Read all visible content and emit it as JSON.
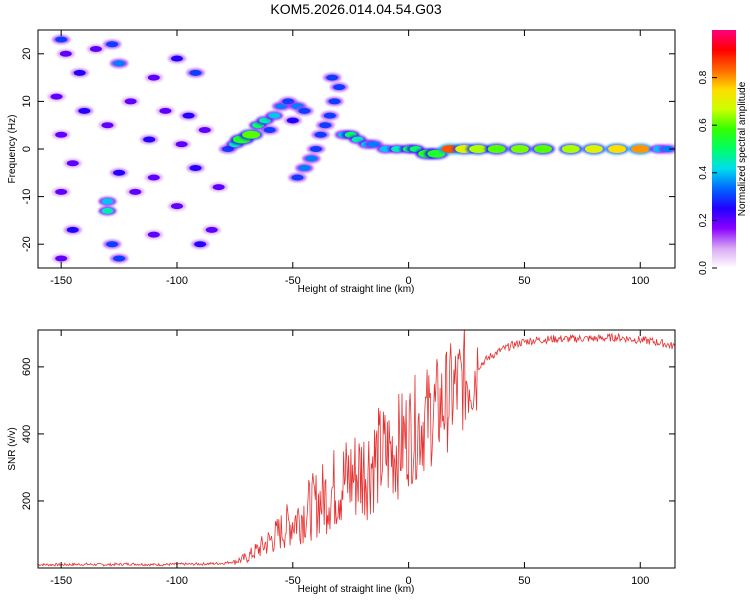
{
  "title": "KOM5.2026.014.04.54.G03",
  "colors": {
    "snr_line": "#e83030",
    "cb_stops": [
      "#ffffff",
      "#d9a9f4",
      "#8800ff",
      "#2200ff",
      "#0066ff",
      "#00ddee",
      "#00ff66",
      "#33ff00",
      "#ccff00",
      "#ffdd00",
      "#ff6600",
      "#ff0000",
      "#ff0080"
    ]
  },
  "chart_data": [
    {
      "type": "heatmap",
      "xlabel": "Height of straight line (km)",
      "ylabel": "Frequency (Hz)",
      "xlim": [
        -160,
        115
      ],
      "ylim": [
        -25,
        25
      ],
      "xticks": [
        -150,
        -100,
        -50,
        0,
        50,
        100
      ],
      "yticks": [
        -20,
        -10,
        0,
        10,
        20
      ],
      "colorbar": {
        "label": "Normalized spectral amplitude",
        "range": [
          0,
          1
        ],
        "ticks": [
          "0.0",
          "0.2",
          "0.4",
          "0.6",
          "0.8"
        ]
      },
      "blobs": [
        {
          "x": -150,
          "y": 23,
          "a": 0.3
        },
        {
          "x": -148,
          "y": 20,
          "a": 0.2
        },
        {
          "x": -142,
          "y": 16,
          "a": 0.25
        },
        {
          "x": -135,
          "y": 21,
          "a": 0.2
        },
        {
          "x": -125,
          "y": 18,
          "a": 0.35
        },
        {
          "x": -128,
          "y": 22,
          "a": 0.3
        },
        {
          "x": -110,
          "y": 15,
          "a": 0.2
        },
        {
          "x": -100,
          "y": 19,
          "a": 0.25
        },
        {
          "x": -92,
          "y": 16,
          "a": 0.3
        },
        {
          "x": -152,
          "y": 11,
          "a": 0.2
        },
        {
          "x": -140,
          "y": 8,
          "a": 0.25
        },
        {
          "x": -120,
          "y": 10,
          "a": 0.2
        },
        {
          "x": -105,
          "y": 8,
          "a": 0.2
        },
        {
          "x": -95,
          "y": 7,
          "a": 0.25
        },
        {
          "x": -150,
          "y": 3,
          "a": 0.2
        },
        {
          "x": -130,
          "y": 5,
          "a": 0.2
        },
        {
          "x": -112,
          "y": 2,
          "a": 0.25
        },
        {
          "x": -98,
          "y": 1,
          "a": 0.2
        },
        {
          "x": -145,
          "y": -3,
          "a": 0.2
        },
        {
          "x": -125,
          "y": -5,
          "a": 0.25
        },
        {
          "x": -110,
          "y": -6,
          "a": 0.2
        },
        {
          "x": -92,
          "y": -4,
          "a": 0.25
        },
        {
          "x": -150,
          "y": -9,
          "a": 0.2
        },
        {
          "x": -130,
          "y": -11,
          "a": 0.4
        },
        {
          "x": -130,
          "y": -13,
          "a": 0.45
        },
        {
          "x": -118,
          "y": -9,
          "a": 0.2
        },
        {
          "x": -100,
          "y": -12,
          "a": 0.2
        },
        {
          "x": -145,
          "y": -17,
          "a": 0.25
        },
        {
          "x": -128,
          "y": -20,
          "a": 0.3
        },
        {
          "x": -110,
          "y": -18,
          "a": 0.2
        },
        {
          "x": -90,
          "y": -20,
          "a": 0.25
        },
        {
          "x": -150,
          "y": -23,
          "a": 0.2
        },
        {
          "x": -125,
          "y": -23,
          "a": 0.3
        },
        {
          "x": -85,
          "y": -17,
          "a": 0.2
        },
        {
          "x": -82,
          "y": -8,
          "a": 0.2
        },
        {
          "x": -88,
          "y": 4,
          "a": 0.2
        },
        {
          "x": -78,
          "y": 0,
          "a": 0.3
        },
        {
          "x": -75,
          "y": 1,
          "a": 0.45
        },
        {
          "x": -72,
          "y": 2,
          "a": 0.55
        },
        {
          "x": -68,
          "y": 3,
          "a": 0.6
        },
        {
          "x": -65,
          "y": 5,
          "a": 0.5
        },
        {
          "x": -62,
          "y": 6,
          "a": 0.45
        },
        {
          "x": -58,
          "y": 7,
          "a": 0.4
        },
        {
          "x": -55,
          "y": 9,
          "a": 0.35
        },
        {
          "x": -52,
          "y": 10,
          "a": 0.3
        },
        {
          "x": -48,
          "y": 9,
          "a": 0.35
        },
        {
          "x": -45,
          "y": 8,
          "a": 0.3
        },
        {
          "x": -60,
          "y": 4,
          "a": 0.3
        },
        {
          "x": -50,
          "y": 6,
          "a": 0.25
        },
        {
          "x": -48,
          "y": -6,
          "a": 0.3
        },
        {
          "x": -45,
          "y": -4,
          "a": 0.35
        },
        {
          "x": -42,
          "y": -2,
          "a": 0.35
        },
        {
          "x": -40,
          "y": 0,
          "a": 0.3
        },
        {
          "x": -38,
          "y": 3,
          "a": 0.3
        },
        {
          "x": -36,
          "y": 5,
          "a": 0.3
        },
        {
          "x": -34,
          "y": 7,
          "a": 0.3
        },
        {
          "x": -32,
          "y": 10,
          "a": 0.3
        },
        {
          "x": -30,
          "y": 13,
          "a": 0.3
        },
        {
          "x": -33,
          "y": 15,
          "a": 0.3
        },
        {
          "x": -28,
          "y": 3,
          "a": 0.4
        },
        {
          "x": -25,
          "y": 3,
          "a": 0.5
        },
        {
          "x": -22,
          "y": 2,
          "a": 0.45
        },
        {
          "x": -18,
          "y": 1,
          "a": 0.4
        },
        {
          "x": -15,
          "y": 1,
          "a": 0.35
        },
        {
          "x": -10,
          "y": 0,
          "a": 0.4
        },
        {
          "x": -5,
          "y": 0,
          "a": 0.45
        },
        {
          "x": 0,
          "y": 0,
          "a": 0.5
        },
        {
          "x": 3,
          "y": 0,
          "a": 0.5
        },
        {
          "x": 8,
          "y": -1,
          "a": 0.55
        },
        {
          "x": 12,
          "y": -1,
          "a": 0.55
        },
        {
          "x": 18,
          "y": 0,
          "a": 0.85
        },
        {
          "x": 24,
          "y": 0,
          "a": 0.7
        },
        {
          "x": 30,
          "y": 0,
          "a": 0.65
        },
        {
          "x": 38,
          "y": 0,
          "a": 0.6
        },
        {
          "x": 48,
          "y": 0,
          "a": 0.62
        },
        {
          "x": 58,
          "y": 0,
          "a": 0.6
        },
        {
          "x": 70,
          "y": 0,
          "a": 0.65
        },
        {
          "x": 80,
          "y": 0,
          "a": 0.7
        },
        {
          "x": 90,
          "y": 0,
          "a": 0.75
        },
        {
          "x": 100,
          "y": 0,
          "a": 0.8
        },
        {
          "x": 108,
          "y": 0,
          "a": 0.4
        },
        {
          "x": 112,
          "y": 0,
          "a": 0.35
        }
      ]
    },
    {
      "type": "line",
      "xlabel": "Height of straight line (km)",
      "ylabel": "SNR (v/v)",
      "xlim": [
        -160,
        115
      ],
      "ylim": [
        0,
        710
      ],
      "xticks": [
        -150,
        -100,
        -50,
        0,
        50,
        100
      ],
      "yticks": [
        200,
        400,
        600
      ],
      "series": [
        {
          "name": "SNR",
          "x": [
            -160,
            -150,
            -140,
            -130,
            -120,
            -110,
            -100,
            -90,
            -80,
            -75,
            -70,
            -65,
            -60,
            -55,
            -50,
            -45,
            -40,
            -35,
            -30,
            -25,
            -20,
            -15,
            -10,
            -5,
            0,
            5,
            10,
            15,
            20,
            25,
            30,
            35,
            40,
            45,
            50,
            55,
            60,
            65,
            70,
            75,
            80,
            85,
            90,
            95,
            100,
            105,
            110,
            115
          ],
          "y": [
            10,
            10,
            11,
            10,
            12,
            10,
            11,
            12,
            14,
            20,
            30,
            55,
            80,
            110,
            140,
            165,
            190,
            220,
            250,
            270,
            290,
            320,
            340,
            360,
            400,
            430,
            460,
            490,
            530,
            570,
            600,
            630,
            650,
            665,
            675,
            680,
            682,
            684,
            683,
            685,
            684,
            686,
            688,
            684,
            680,
            676,
            670,
            660
          ]
        }
      ]
    }
  ]
}
